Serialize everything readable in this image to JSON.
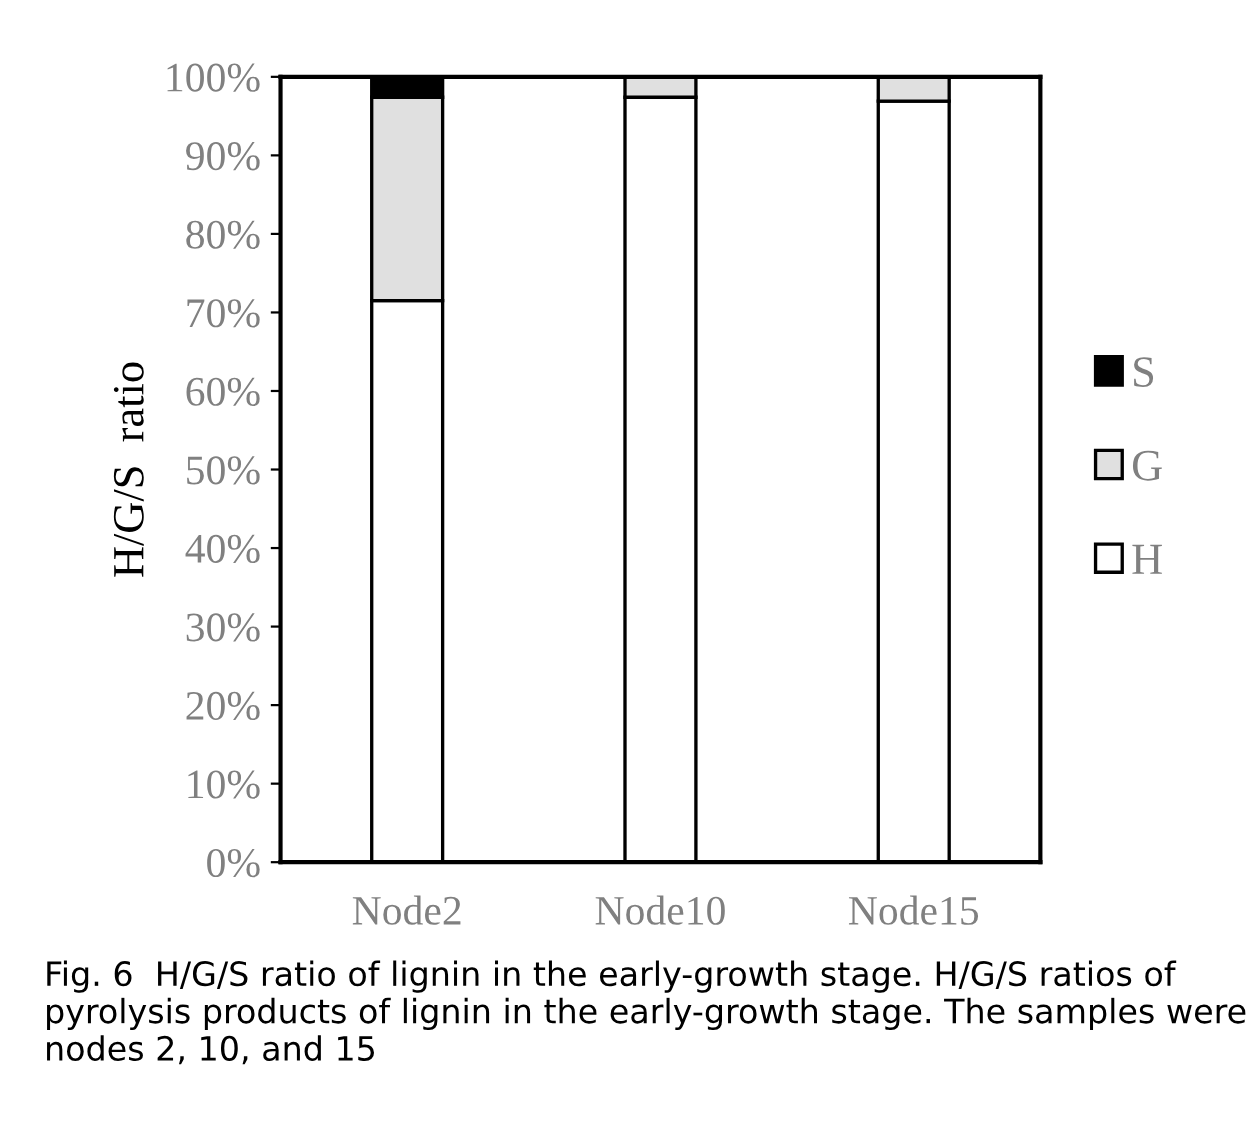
{
  "chart_data": {
    "type": "bar",
    "stacked": true,
    "ylabel": "H/G/S  ratio",
    "categories": [
      "Node2",
      "Node10",
      "Node15"
    ],
    "series": [
      {
        "name": "H",
        "color": "#ffffff",
        "values": [
          71.5,
          97.4,
          96.9
        ]
      },
      {
        "name": "G",
        "color": "#e0e0e0",
        "values": [
          25.9,
          2.6,
          3.1
        ]
      },
      {
        "name": "S",
        "color": "#000000",
        "values": [
          2.6,
          0,
          0
        ]
      }
    ],
    "ylim": [
      0,
      100
    ],
    "yticks": [
      {
        "value": 0,
        "label": "0%"
      },
      {
        "value": 10,
        "label": "10%"
      },
      {
        "value": 20,
        "label": "20%"
      },
      {
        "value": 30,
        "label": "30%"
      },
      {
        "value": 40,
        "label": "40%"
      },
      {
        "value": 50,
        "label": "50%"
      },
      {
        "value": 60,
        "label": "60%"
      },
      {
        "value": 70,
        "label": "70%"
      },
      {
        "value": 80,
        "label": "80%"
      },
      {
        "value": 90,
        "label": "90%"
      },
      {
        "value": 100,
        "label": "100%"
      }
    ],
    "legend": "right",
    "grid": false,
    "annotations": [
      "Fig. 6  H/G/S ratio of lignin in the early-growth stage. H/G/S ratios of pyrolysis products of lignin in the early-growth stage. The samples were nodes 2, 10, and 15"
    ]
  }
}
